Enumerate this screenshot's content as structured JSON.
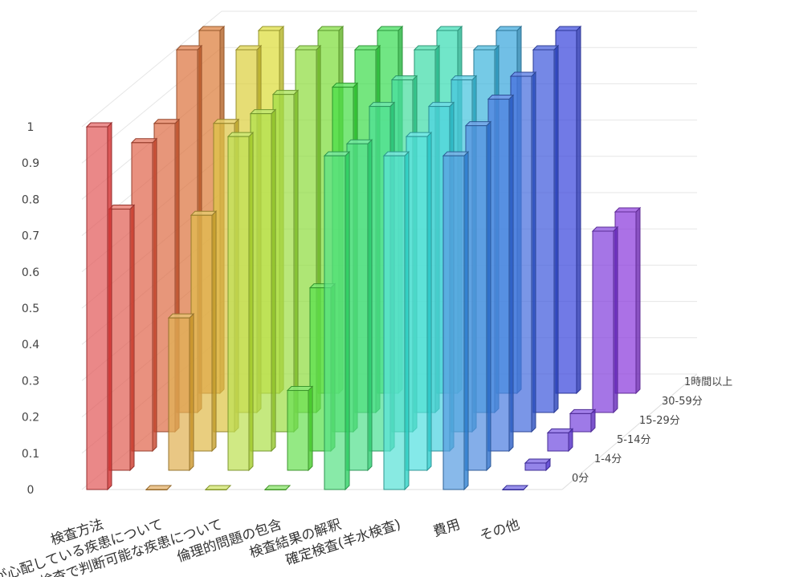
{
  "chart_data": {
    "type": "bar",
    "subtype": "3d-grouped",
    "categories": [
      "検査方法",
      "妊婦が心配している疾患について",
      "検査で判断可能な疾患について",
      "倫理的問題の包含",
      "検査結果の解釈",
      "確定検査(羊水検査)",
      "費用",
      "その他"
    ],
    "series": [
      {
        "name": "0分",
        "values": [
          1.0,
          0.0,
          0.0,
          0.0,
          0.92,
          0.92,
          0.92,
          0.0
        ]
      },
      {
        "name": "1-4分",
        "values": [
          0.72,
          0.42,
          0.92,
          0.22,
          0.9,
          0.92,
          0.95,
          0.02
        ]
      },
      {
        "name": "5-14分",
        "values": [
          0.85,
          0.65,
          0.93,
          0.45,
          0.95,
          0.95,
          0.97,
          0.05
        ]
      },
      {
        "name": "15-29分",
        "values": [
          0.85,
          0.85,
          0.93,
          0.95,
          0.97,
          0.97,
          0.98,
          0.05
        ]
      },
      {
        "name": "30-59分",
        "values": [
          1.0,
          1.0,
          1.0,
          1.0,
          1.0,
          1.0,
          1.0,
          0.5
        ]
      },
      {
        "name": "1時間以上",
        "values": [
          1.0,
          1.0,
          1.0,
          1.0,
          1.0,
          1.0,
          1.0,
          0.5
        ]
      }
    ],
    "ylim": [
      0,
      1
    ],
    "yticks": [
      "0",
      "0.1",
      "0.2",
      "0.3",
      "0.4",
      "0.5",
      "0.6",
      "0.7",
      "0.8",
      "0.9",
      "1"
    ],
    "depth_labels": [
      "0分",
      "1-4分",
      "5-14分",
      "15-29分",
      "30-59分",
      "1時間以上"
    ],
    "colors": [
      "#e8707a",
      "#f0a070",
      "#e8c860",
      "#a8d860",
      "#60c870",
      "#40b890",
      "#40a8d8",
      "#4070d8",
      "#5050c8",
      "#9060c8",
      "#d060c0"
    ],
    "grid": true,
    "legend": "none"
  }
}
